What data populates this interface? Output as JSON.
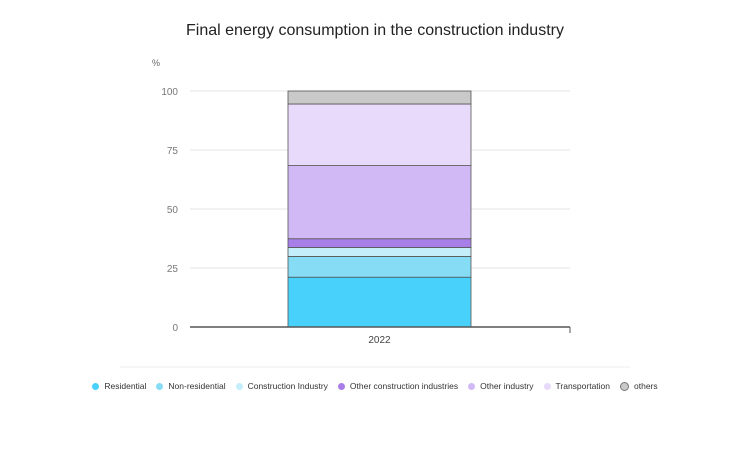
{
  "chart_data": {
    "type": "bar",
    "stacked": true,
    "title": "Final energy consumption in the construction industry",
    "ylabel": "%",
    "xlabel": "",
    "categories": [
      "2022"
    ],
    "ylim": [
      0,
      100
    ],
    "yticks": [
      "0",
      "25",
      "50",
      "75",
      "100"
    ],
    "grid": true,
    "legend_position": "bottom",
    "series": [
      {
        "name": "Residential",
        "values": [
          21.1
        ],
        "color": "#48d1fb"
      },
      {
        "name": "Non-residential",
        "values": [
          8.8
        ],
        "color": "#86dcf5"
      },
      {
        "name": "Construction Industry",
        "values": [
          3.8
        ],
        "color": "#c4eefa"
      },
      {
        "name": "Other construction industries",
        "values": [
          3.7
        ],
        "color": "#a87fe8"
      },
      {
        "name": "Other industry",
        "values": [
          31.0
        ],
        "color": "#d0b9f5"
      },
      {
        "name": "Transportation",
        "values": [
          26.1
        ],
        "color": "#e8dafa"
      },
      {
        "name": "others",
        "values": [
          5.5
        ],
        "color": "#c9c9c9"
      }
    ]
  }
}
